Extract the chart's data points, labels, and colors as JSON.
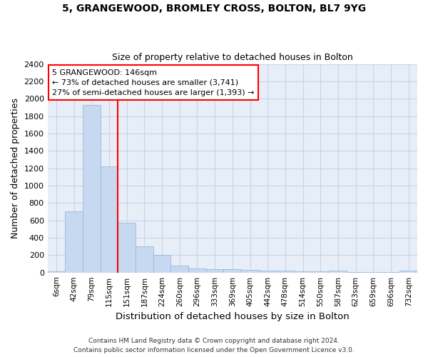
{
  "title_line1": "5, GRANGEWOOD, BROMLEY CROSS, BOLTON, BL7 9YG",
  "title_line2": "Size of property relative to detached houses in Bolton",
  "xlabel": "Distribution of detached houses by size in Bolton",
  "ylabel": "Number of detached properties",
  "bin_labels": [
    "6sqm",
    "42sqm",
    "79sqm",
    "115sqm",
    "151sqm",
    "187sqm",
    "224sqm",
    "260sqm",
    "296sqm",
    "333sqm",
    "369sqm",
    "405sqm",
    "442sqm",
    "478sqm",
    "514sqm",
    "550sqm",
    "587sqm",
    "623sqm",
    "659sqm",
    "696sqm",
    "732sqm"
  ],
  "bar_values": [
    15,
    700,
    1930,
    1220,
    575,
    305,
    200,
    80,
    45,
    35,
    35,
    30,
    25,
    20,
    15,
    10,
    20,
    5,
    5,
    5,
    20
  ],
  "bar_color": "#c6d9f0",
  "bar_edgecolor": "#8ab4d9",
  "vline_x": 4.0,
  "vline_color": "red",
  "annotation_text": "5 GRANGEWOOD: 146sqm\n← 73% of detached houses are smaller (3,741)\n27% of semi-detached houses are larger (1,393) →",
  "annotation_box_color": "red",
  "ylim": [
    0,
    2400
  ],
  "yticks": [
    0,
    200,
    400,
    600,
    800,
    1000,
    1200,
    1400,
    1600,
    1800,
    2000,
    2200,
    2400
  ],
  "footer_line1": "Contains HM Land Registry data © Crown copyright and database right 2024.",
  "footer_line2": "Contains public sector information licensed under the Open Government Licence v3.0.",
  "grid_color": "#c8d4e8",
  "background_color": "#e8eef8"
}
